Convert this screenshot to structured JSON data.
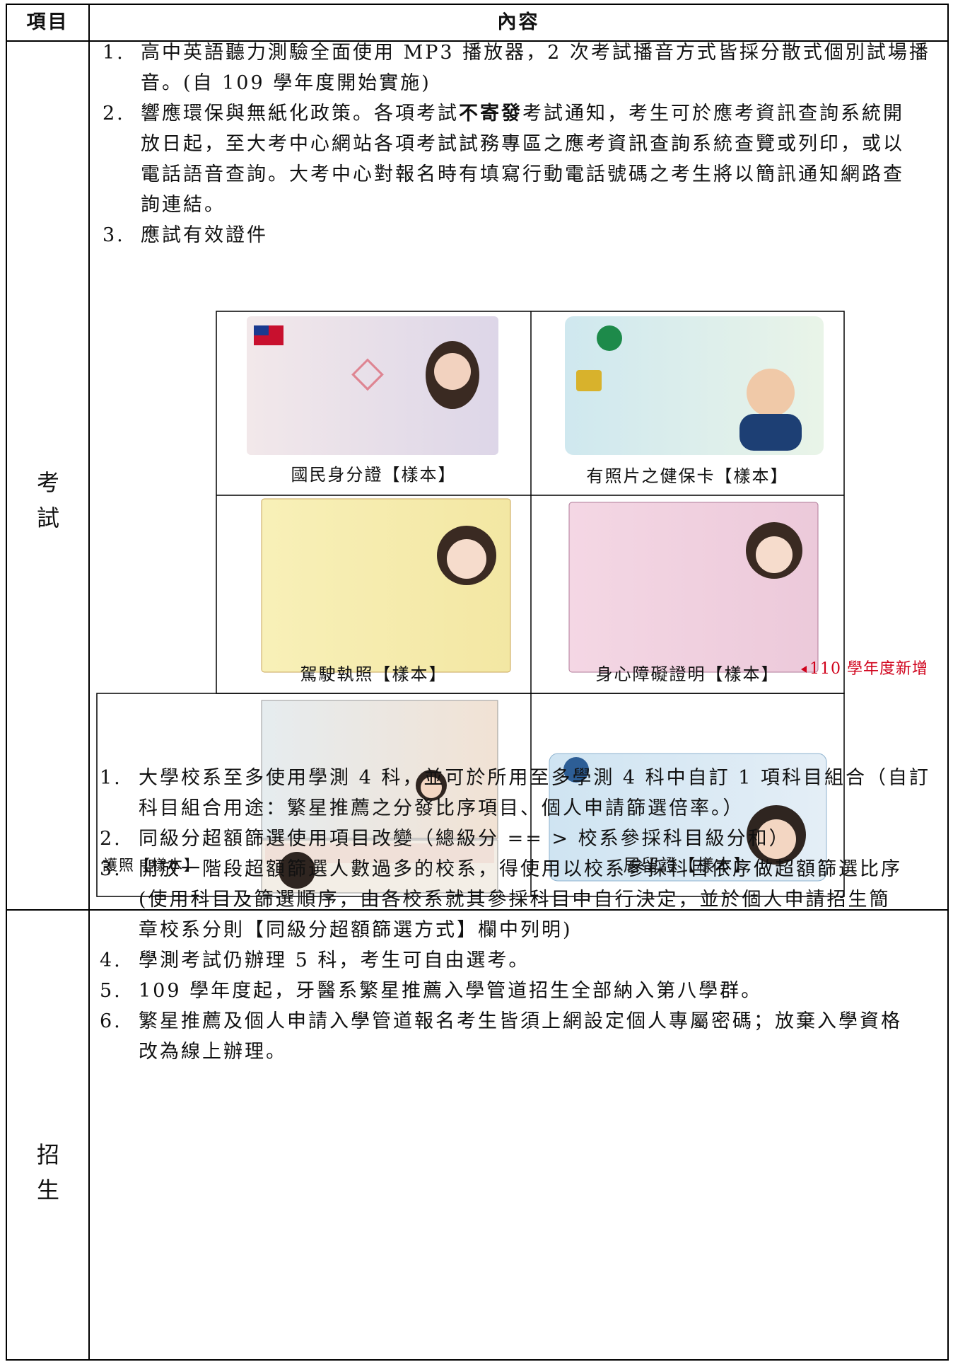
{
  "header": {
    "col1": "項目",
    "col2": "內容"
  },
  "rows": [
    {
      "label": "考試",
      "items": [
        {
          "number": "1.",
          "lines": [
            [
              "高中英語聽力測驗全面使用 MP3 播放器，2 次考試播音方式皆採分散式個別試場播"
            ],
            [
              "音。(自 109 學年度開始實施)"
            ]
          ]
        },
        {
          "number": "2.",
          "lines": [
            [
              "響應環保與無紙化政策。各項考試",
              {
                "text": "不寄發",
                "bold": true
              },
              "考試通知，考生可於應考資訊查詢系統開"
            ],
            [
              "放日起，至大考中心網站各項考試試務專區之應考資訊查詢系統查覽或列印，或以"
            ],
            [
              "電話語音查詢。大考中心對報名時有填寫行動電話號碼之考生將以簡訊通知網路查"
            ],
            [
              "詢連結。"
            ]
          ]
        },
        {
          "number": "3.",
          "lines": [
            [
              "應試有效證件"
            ]
          ]
        }
      ],
      "id_samples": [
        "國民身分證【樣本】",
        "有照片之健保卡【樣本】",
        "駕駛執照【樣本】",
        "身心障礙證明【樣本】",
        "護照【樣本】",
        "居留證【樣本】"
      ],
      "note": "110 學年度新增"
    },
    {
      "label": "招生",
      "items": [
        {
          "number": "1.",
          "lines": [
            [
              "大學校系至多使用學測 4 科，並可於所用至多學測 4 科中自訂 1 項科目組合（自訂"
            ],
            [
              "科目組合用途：繁星推薦之分發比序項目、個人申請篩選倍率。）"
            ]
          ]
        },
        {
          "number": "2.",
          "lines": [
            [
              "同級分超額篩選使用項目改變（總級分 == > 校系參採科目級分和）"
            ]
          ]
        },
        {
          "number": "3.",
          "lines": [
            [
              "開放一階段超額篩選人數過多的校系，得使用以校系參採科目依序做超額篩選比序"
            ],
            [
              "(使用科目及篩選順序，由各校系就其參採科目中自行決定，並於個人申請招生簡"
            ],
            [
              "章校系分則【同級分超額篩選方式】欄中列明)"
            ]
          ]
        },
        {
          "number": "4.",
          "lines": [
            [
              "學測考試仍辦理 5 科，考生可自由選考。"
            ]
          ]
        },
        {
          "number": "5.",
          "lines": [
            [
              "109 學年度起，牙醫系繁星推薦入學管道招生全部納入第八學群。"
            ]
          ]
        },
        {
          "number": "6.",
          "lines": [
            [
              "繁星推薦及個人申請入學管道報名考生皆須上網設定個人專屬密碼；放棄入學資格"
            ],
            [
              "改為線上辦理。"
            ]
          ]
        }
      ]
    }
  ]
}
